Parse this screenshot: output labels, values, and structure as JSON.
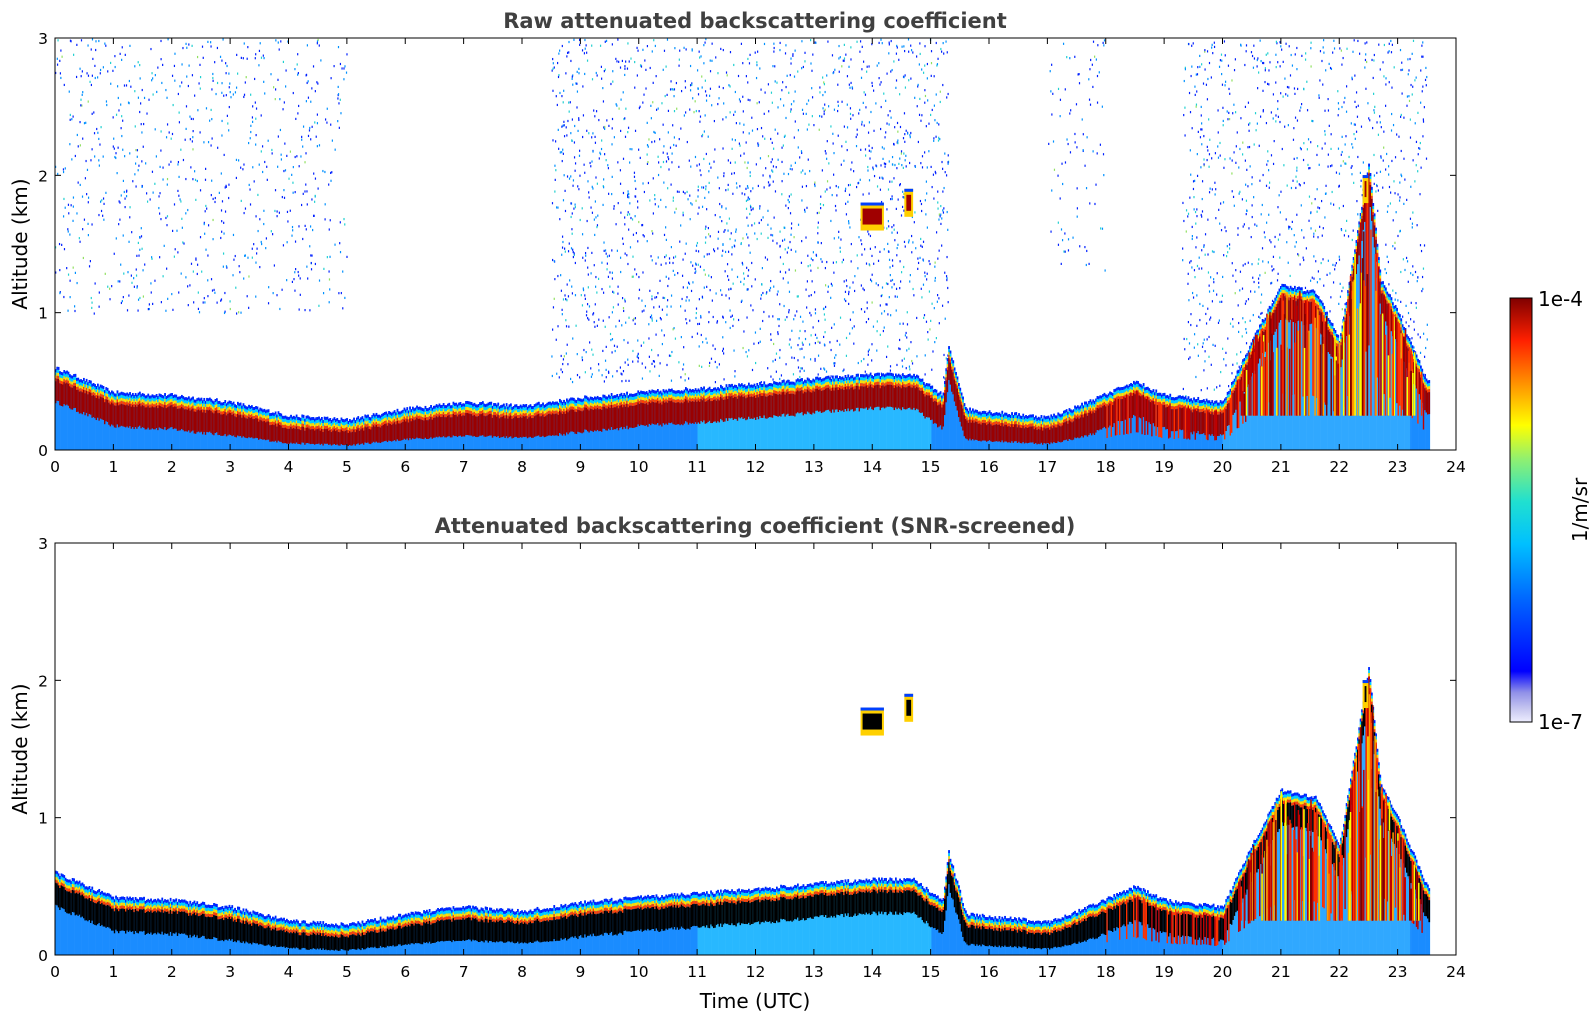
{
  "chart_data": [
    {
      "type": "heatmap",
      "title": "Raw attenuated backscattering coefficient",
      "xlabel": "",
      "ylabel": "Altitude (km)",
      "xlim": [
        0,
        24
      ],
      "ylim": [
        0,
        3
      ],
      "xticks": [
        0,
        1,
        2,
        3,
        4,
        5,
        6,
        7,
        8,
        9,
        10,
        11,
        12,
        13,
        14,
        15,
        16,
        17,
        18,
        19,
        20,
        21,
        22,
        23,
        24
      ],
      "yticks": [
        0,
        1,
        2,
        3
      ],
      "colorbar": {
        "label": "1/m/sr",
        "min_label": "1e-7",
        "max_label": "1e-4",
        "scale": "log"
      },
      "layer_top_km": [
        [
          0,
          0.6
        ],
        [
          1,
          0.42
        ],
        [
          2,
          0.4
        ],
        [
          3,
          0.35
        ],
        [
          4,
          0.25
        ],
        [
          5,
          0.22
        ],
        [
          6,
          0.3
        ],
        [
          7,
          0.35
        ],
        [
          8,
          0.32
        ],
        [
          9,
          0.38
        ],
        [
          10,
          0.42
        ],
        [
          11,
          0.45
        ],
        [
          12,
          0.48
        ],
        [
          13,
          0.52
        ],
        [
          14,
          0.55
        ],
        [
          14.7,
          0.55
        ],
        [
          15.2,
          0.4
        ],
        [
          15.3,
          0.75
        ],
        [
          15.6,
          0.3
        ],
        [
          16,
          0.28
        ],
        [
          17,
          0.24
        ],
        [
          17.4,
          0.3
        ],
        [
          18.5,
          0.5
        ],
        [
          19,
          0.4
        ],
        [
          20,
          0.35
        ],
        [
          20.5,
          0.8
        ],
        [
          21,
          1.2
        ],
        [
          21.6,
          1.15
        ],
        [
          22,
          0.8
        ],
        [
          22.5,
          2.1
        ],
        [
          22.7,
          1.25
        ],
        [
          23,
          1.0
        ],
        [
          23.5,
          0.5
        ]
      ],
      "high_features": [
        {
          "t0": 13.8,
          "t1": 14.2,
          "alt_km": 1.7
        },
        {
          "t0": 14.55,
          "t1": 14.7,
          "alt_km": 1.8
        },
        {
          "t0": 22.4,
          "t1": 22.5,
          "alt_km": 1.9
        }
      ],
      "noise": "speckle above boundary layer"
    },
    {
      "type": "heatmap",
      "title": "Attenuated backscattering coefficient (SNR-screened)",
      "xlabel": "Time (UTC)",
      "ylabel": "Altitude (km)",
      "xlim": [
        0,
        24
      ],
      "ylim": [
        0,
        3
      ],
      "xticks": [
        0,
        1,
        2,
        3,
        4,
        5,
        6,
        7,
        8,
        9,
        10,
        11,
        12,
        13,
        14,
        15,
        16,
        17,
        18,
        19,
        20,
        21,
        22,
        23,
        24
      ],
      "yticks": [
        0,
        1,
        2,
        3
      ],
      "layer_top_km": [
        [
          0,
          0.6
        ],
        [
          1,
          0.42
        ],
        [
          2,
          0.4
        ],
        [
          3,
          0.35
        ],
        [
          4,
          0.25
        ],
        [
          5,
          0.22
        ],
        [
          6,
          0.3
        ],
        [
          7,
          0.35
        ],
        [
          8,
          0.32
        ],
        [
          9,
          0.38
        ],
        [
          10,
          0.42
        ],
        [
          11,
          0.45
        ],
        [
          12,
          0.48
        ],
        [
          13,
          0.52
        ],
        [
          14,
          0.55
        ],
        [
          14.7,
          0.55
        ],
        [
          15.2,
          0.4
        ],
        [
          15.3,
          0.75
        ],
        [
          15.6,
          0.3
        ],
        [
          16,
          0.28
        ],
        [
          17,
          0.24
        ],
        [
          17.4,
          0.3
        ],
        [
          18.5,
          0.5
        ],
        [
          19,
          0.4
        ],
        [
          20,
          0.35
        ],
        [
          20.5,
          0.8
        ],
        [
          21,
          1.2
        ],
        [
          21.6,
          1.15
        ],
        [
          22,
          0.8
        ],
        [
          22.5,
          2.1
        ],
        [
          22.7,
          1.25
        ],
        [
          23,
          1.0
        ],
        [
          23.5,
          0.5
        ]
      ],
      "high_features": [
        {
          "t0": 13.8,
          "t1": 14.2,
          "alt_km": 1.7
        },
        {
          "t0": 14.55,
          "t1": 14.7,
          "alt_km": 1.8
        },
        {
          "t0": 22.4,
          "t1": 22.5,
          "alt_km": 1.9
        }
      ],
      "noise": "none (screened)"
    }
  ],
  "colors": {
    "jet": [
      "#e8e8f8",
      "#0000d0",
      "#0040ff",
      "#0090ff",
      "#00c8ff",
      "#30e0c0",
      "#a0f060",
      "#ffff00",
      "#ffa000",
      "#ff3000",
      "#c00000",
      "#800000"
    ],
    "core_black": "#000000",
    "frame": "#000000"
  }
}
